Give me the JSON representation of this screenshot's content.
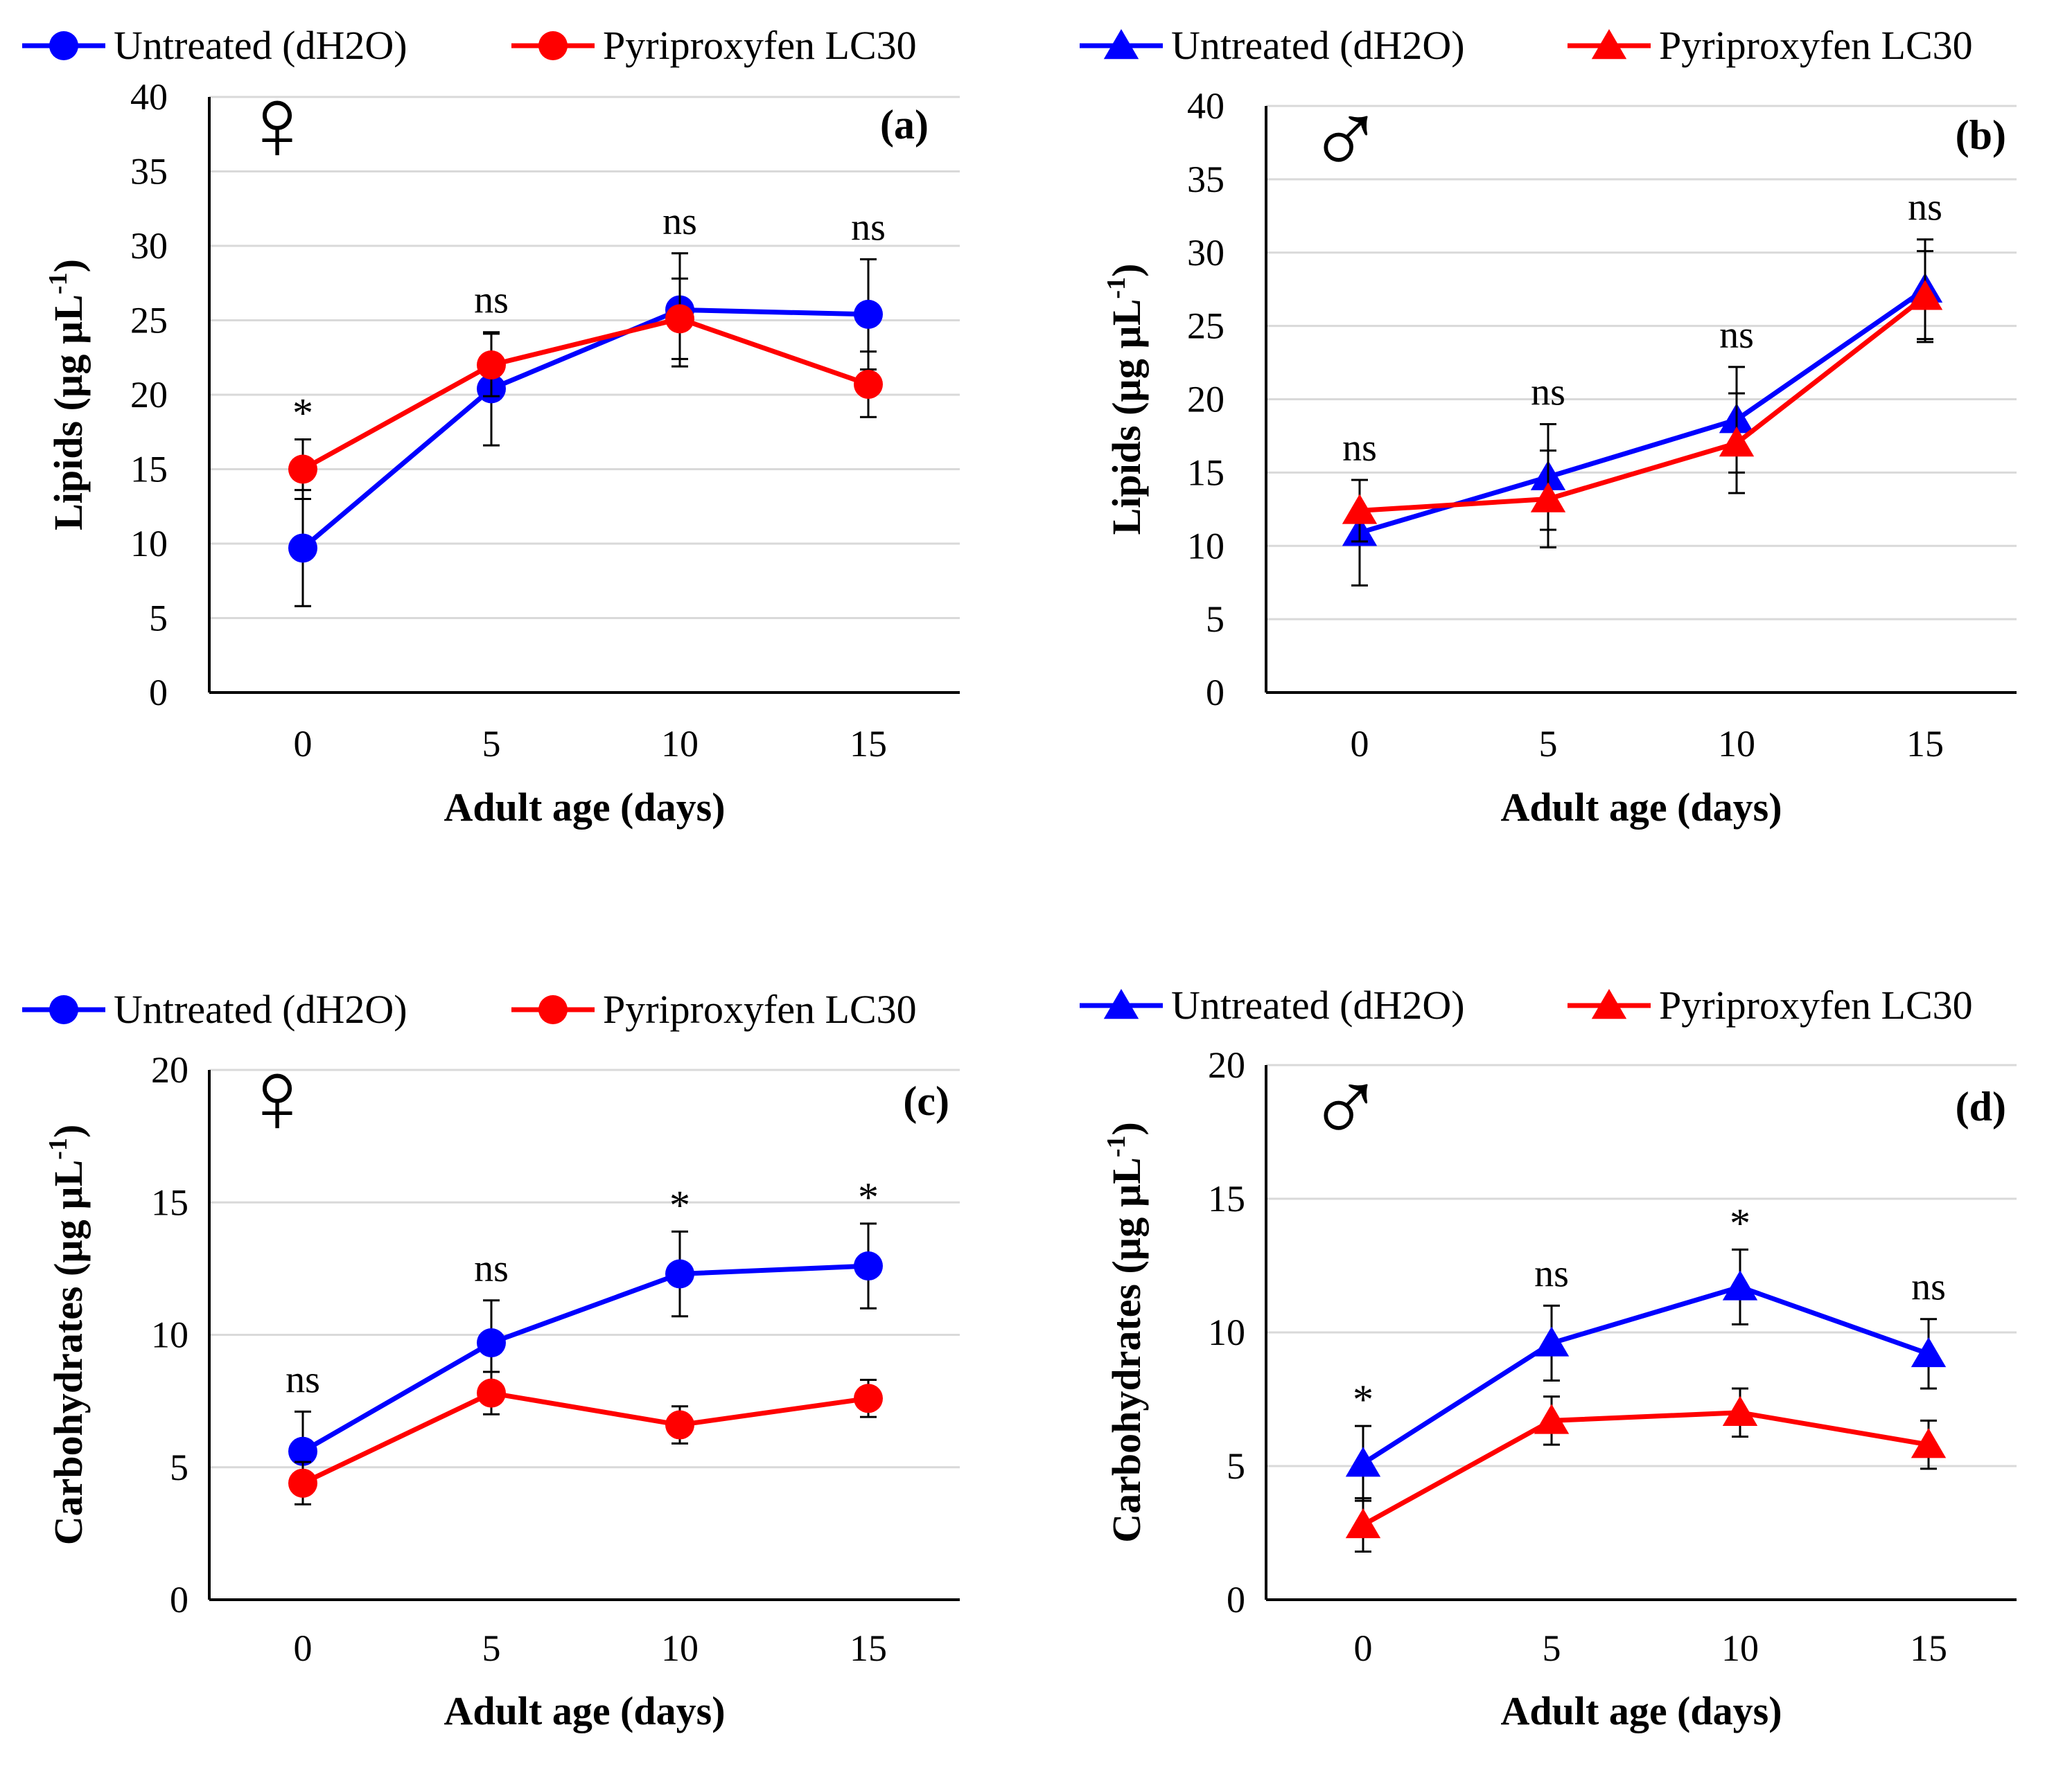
{
  "chart_data": [
    {
      "id": "a",
      "type": "line",
      "panel_label": "(a)",
      "sex_symbol": "♀",
      "marker": "circle",
      "xlabel": "Adult age (days)",
      "ylabel": "Lipids (µg µL",
      "ylabel_exp": "-1",
      "ylabel_close": ")",
      "categories": [
        "0",
        "5",
        "10",
        "15"
      ],
      "ylim": [
        0,
        40
      ],
      "yticks": [
        "0",
        "5",
        "10",
        "15",
        "20",
        "25",
        "30",
        "35",
        "40"
      ],
      "grid": true,
      "legend": "top",
      "significance": [
        "*",
        "ns",
        "ns",
        "ns"
      ],
      "series": [
        {
          "name": "Untreated (dH2O)",
          "color": "#0000ff",
          "values": [
            9.7,
            20.4,
            25.7,
            25.4
          ],
          "errors": [
            3.9,
            3.8,
            3.8,
            3.7
          ]
        },
        {
          "name": "Pyriproxyfen LC30",
          "color": "#ff0000",
          "values": [
            15.0,
            22.0,
            25.1,
            20.7
          ],
          "errors": [
            2.0,
            2.1,
            2.7,
            2.2
          ]
        }
      ]
    },
    {
      "id": "b",
      "type": "line",
      "panel_label": "(b)",
      "sex_symbol": "♂",
      "marker": "triangle",
      "xlabel": "Adult age (days)",
      "ylabel": "Lipids (µg µL",
      "ylabel_exp": "-1",
      "ylabel_close": ")",
      "categories": [
        "0",
        "5",
        "10",
        "15"
      ],
      "ylim": [
        0,
        40
      ],
      "yticks": [
        "0",
        "5",
        "10",
        "15",
        "20",
        "25",
        "30",
        "35",
        "40"
      ],
      "grid": true,
      "legend": "top",
      "significance": [
        "ns",
        "ns",
        "ns",
        "ns"
      ],
      "series": [
        {
          "name": "Untreated (dH2O)",
          "color": "#0000ff",
          "values": [
            10.9,
            14.7,
            18.6,
            27.5
          ],
          "errors": [
            3.6,
            3.6,
            3.6,
            3.4
          ]
        },
        {
          "name": "Pyriproxyfen LC30",
          "color": "#ff0000",
          "values": [
            12.4,
            13.2,
            17.0,
            27.0
          ],
          "errors": [
            2.1,
            3.3,
            3.4,
            3.1
          ]
        }
      ]
    },
    {
      "id": "c",
      "type": "line",
      "panel_label": "(c)",
      "sex_symbol": "♀",
      "marker": "circle",
      "xlabel": "Adult age (days)",
      "ylabel": "Carbohydrates (µg µL",
      "ylabel_exp": "-1",
      "ylabel_close": ")",
      "categories": [
        "0",
        "5",
        "10",
        "15"
      ],
      "ylim": [
        0,
        20
      ],
      "yticks": [
        "0",
        "5",
        "10",
        "15",
        "20"
      ],
      "grid": true,
      "legend": "top",
      "significance": [
        "ns",
        "ns",
        "*",
        "*"
      ],
      "series": [
        {
          "name": "Untreated (dH2O)",
          "color": "#0000ff",
          "values": [
            5.6,
            9.7,
            12.3,
            12.6
          ],
          "errors": [
            1.5,
            1.6,
            1.6,
            1.6
          ]
        },
        {
          "name": "Pyriproxyfen LC30",
          "color": "#ff0000",
          "values": [
            4.4,
            7.8,
            6.6,
            7.6
          ],
          "errors": [
            0.8,
            0.8,
            0.7,
            0.7
          ]
        }
      ]
    },
    {
      "id": "d",
      "type": "line",
      "panel_label": "(d)",
      "sex_symbol": "♂",
      "marker": "triangle",
      "xlabel": "Adult age (days)",
      "ylabel": "Carbohydrates (µg µL",
      "ylabel_exp": "-1",
      "ylabel_close": ")",
      "categories": [
        "0",
        "5",
        "10",
        "15"
      ],
      "ylim": [
        0,
        20
      ],
      "yticks": [
        "0",
        "5",
        "10",
        "15",
        "20"
      ],
      "grid": true,
      "legend": "top",
      "significance": [
        "*",
        "ns",
        "*",
        "ns"
      ],
      "series": [
        {
          "name": "Untreated (dH2O)",
          "color": "#0000ff",
          "values": [
            5.1,
            9.6,
            11.7,
            9.2
          ],
          "errors": [
            1.4,
            1.4,
            1.4,
            1.3
          ]
        },
        {
          "name": "Pyriproxyfen LC30",
          "color": "#ff0000",
          "values": [
            2.8,
            6.7,
            7.0,
            5.8
          ],
          "errors": [
            1.0,
            0.9,
            0.9,
            0.9
          ]
        }
      ]
    }
  ]
}
